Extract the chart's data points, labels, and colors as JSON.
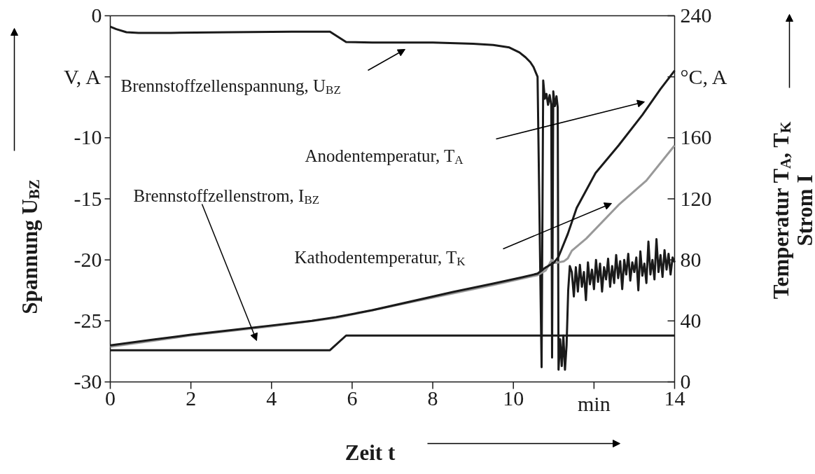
{
  "chart_data": {
    "type": "line",
    "xlabel": "Zeit t",
    "ylabel": "Spannung U$_{BZ}$",
    "y2label": "Temperatur T$_{A}$, T$_{K}$\nStrom I",
    "annotations": [
      "Brennstoffzellenspannung, U$_{BZ}$",
      "Anodentemperatur, T$_{A}$",
      "Brennstoffzellenstrom, I$_{BZ}$",
      "Kathodentemperatur, T$_{K}$"
    ],
    "xlim": [
      0,
      14
    ],
    "xticks": [
      0,
      2,
      4,
      6,
      8,
      10,
      {
        "value": 12,
        "label": "min"
      },
      14
    ],
    "ylim": [
      -30,
      0
    ],
    "yticks": [
      -30,
      -25,
      -20,
      -15,
      -10,
      {
        "value": -5,
        "label": "V, A"
      },
      0
    ],
    "y2lim": [
      0,
      240
    ],
    "y2ticks": [
      0,
      40,
      80,
      120,
      160,
      {
        "value": 200,
        "label": "°C, A"
      },
      240
    ],
    "series": [
      {
        "color": "#1a1a1a",
        "axis": "y",
        "x": [
          0,
          0.15,
          0.4,
          0.7,
          1.5,
          3,
          4.5,
          5.45,
          5.85,
          6.5,
          8,
          9,
          9.5,
          9.9,
          10.15,
          10.3,
          10.42,
          10.5,
          10.6,
          10.7,
          10.74,
          10.78,
          10.82,
          10.86,
          10.9,
          10.94,
          10.96,
          10.99,
          11.03,
          11.07,
          11.1,
          11.12,
          11.16,
          11.2,
          11.24,
          11.28,
          11.32,
          11.36,
          11.4,
          11.45,
          11.5,
          11.55,
          11.6,
          11.65,
          11.7,
          11.75,
          11.8,
          11.85,
          11.9,
          11.95,
          12.0,
          12.05,
          12.1,
          12.15,
          12.2,
          12.25,
          12.3,
          12.35,
          12.4,
          12.45,
          12.5,
          12.55,
          12.6,
          12.65,
          12.7,
          12.75,
          12.8,
          12.85,
          12.9,
          12.95,
          13.0,
          13.05,
          13.1,
          13.15,
          13.2,
          13.25,
          13.3,
          13.35,
          13.4,
          13.45,
          13.5,
          13.55,
          13.6,
          13.65,
          13.7,
          13.75,
          13.8,
          13.85,
          13.9,
          13.95,
          14.0
        ],
        "values": [
          -0.9,
          -1.1,
          -1.35,
          -1.4,
          -1.4,
          -1.35,
          -1.3,
          -1.3,
          -2.15,
          -2.2,
          -2.2,
          -2.3,
          -2.4,
          -2.6,
          -3.0,
          -3.4,
          -3.8,
          -4.2,
          -5.0,
          -28.8,
          -5.3,
          -6.8,
          -6.4,
          -7.3,
          -6.5,
          -7.3,
          -28.0,
          -6.2,
          -7.4,
          -6.6,
          -7.5,
          -29.0,
          -26.5,
          -28.7,
          -26.2,
          -29.0,
          -27.0,
          -22.5,
          -20.5,
          -21.0,
          -23.0,
          -20.6,
          -22.6,
          -20.4,
          -22.2,
          -21.0,
          -23.3,
          -20.2,
          -22.0,
          -20.8,
          -22.4,
          -20.0,
          -21.8,
          -20.3,
          -22.6,
          -20.6,
          -21.6,
          -19.9,
          -22.2,
          -20.5,
          -21.9,
          -19.6,
          -21.5,
          -20.1,
          -22.4,
          -20.0,
          -21.2,
          -19.5,
          -21.7,
          -20.2,
          -21.0,
          -19.8,
          -22.5,
          -19.3,
          -21.3,
          -20.3,
          -21.9,
          -18.5,
          -21.2,
          -20.0,
          -21.6,
          -18.3,
          -21.0,
          -19.6,
          -21.4,
          -19.2,
          -20.8,
          -19.5,
          -21.2,
          -19.8,
          -20.2
        ]
      },
      {
        "color": "#1a1a1a",
        "axis": "y",
        "x": [
          0,
          5.45,
          5.85,
          14
        ],
        "values": [
          -27.4,
          -27.4,
          -26.2,
          -26.2
        ]
      },
      {
        "color": "#999999",
        "axis": "y2",
        "x": [
          0,
          2,
          4,
          5.6,
          7.5,
          9.5,
          10.6,
          10.8,
          10.95,
          11.05,
          11.25,
          11.35,
          11.45,
          11.81,
          12.61,
          13.3,
          14
        ],
        "values": [
          23,
          30.5,
          36.5,
          42,
          52.5,
          63.5,
          70,
          73,
          80,
          78,
          79,
          81,
          86,
          94,
          116,
          132,
          155
        ]
      },
      {
        "color": "#1a1a1a",
        "axis": "y2",
        "x": [
          0,
          1,
          2,
          3,
          4,
          5,
          5.6,
          6.5,
          7.5,
          8.5,
          9.5,
          10.2,
          10.6,
          10.8,
          11.0,
          11.12,
          11.35,
          11.57,
          12.04,
          12.61,
          13.2,
          13.65,
          14
        ],
        "values": [
          24,
          27.5,
          31,
          34,
          37,
          40,
          42.5,
          47,
          53,
          59,
          64.5,
          68.5,
          71,
          75,
          78,
          82,
          97,
          114,
          137,
          155,
          175,
          192,
          204
        ]
      }
    ]
  }
}
